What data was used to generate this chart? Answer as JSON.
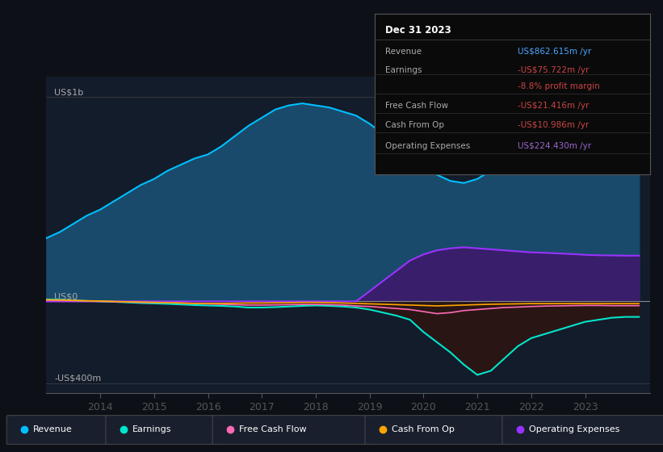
{
  "bg_color": "#0d1117",
  "plot_bg_color": "#131c2b",
  "title_box_date": "Dec 31 2023",
  "ylabel_top": "US$1b",
  "ylabel_zero": "US$0",
  "ylabel_bottom": "-US$400m",
  "years": [
    2013.0,
    2013.25,
    2013.5,
    2013.75,
    2014.0,
    2014.25,
    2014.5,
    2014.75,
    2015.0,
    2015.25,
    2015.5,
    2015.75,
    2016.0,
    2016.25,
    2016.5,
    2016.75,
    2017.0,
    2017.25,
    2017.5,
    2017.75,
    2018.0,
    2018.25,
    2018.5,
    2018.75,
    2019.0,
    2019.25,
    2019.5,
    2019.75,
    2020.0,
    2020.25,
    2020.5,
    2020.75,
    2021.0,
    2021.25,
    2021.5,
    2021.75,
    2022.0,
    2022.25,
    2022.5,
    2022.75,
    2023.0,
    2023.25,
    2023.5,
    2023.75,
    2024.0
  ],
  "revenue": [
    310,
    340,
    380,
    420,
    450,
    490,
    530,
    570,
    600,
    640,
    670,
    700,
    720,
    760,
    810,
    860,
    900,
    940,
    960,
    970,
    960,
    950,
    930,
    910,
    870,
    820,
    780,
    750,
    680,
    620,
    590,
    580,
    600,
    640,
    680,
    710,
    720,
    740,
    760,
    780,
    800,
    820,
    845,
    863,
    863
  ],
  "earnings": [
    10,
    8,
    5,
    2,
    0,
    -2,
    -5,
    -8,
    -10,
    -12,
    -15,
    -18,
    -20,
    -22,
    -25,
    -30,
    -30,
    -28,
    -25,
    -22,
    -20,
    -22,
    -25,
    -30,
    -40,
    -55,
    -70,
    -90,
    -150,
    -200,
    -250,
    -310,
    -360,
    -340,
    -280,
    -220,
    -180,
    -160,
    -140,
    -120,
    -100,
    -90,
    -80,
    -76,
    -76
  ],
  "free_cash_flow": [
    5,
    4,
    3,
    2,
    0,
    -2,
    -3,
    -5,
    -5,
    -6,
    -8,
    -10,
    -12,
    -14,
    -16,
    -18,
    -18,
    -17,
    -16,
    -15,
    -15,
    -16,
    -18,
    -22,
    -25,
    -30,
    -35,
    -40,
    -50,
    -60,
    -55,
    -45,
    -40,
    -35,
    -30,
    -28,
    -25,
    -23,
    -22,
    -21,
    -20,
    -20,
    -21,
    -21,
    -21
  ],
  "cash_from_op": [
    8,
    7,
    5,
    3,
    2,
    0,
    -2,
    -3,
    -5,
    -6,
    -8,
    -10,
    -10,
    -10,
    -9,
    -8,
    -8,
    -7,
    -6,
    -5,
    -5,
    -6,
    -8,
    -10,
    -12,
    -14,
    -16,
    -18,
    -20,
    -22,
    -20,
    -18,
    -16,
    -14,
    -13,
    -12,
    -11,
    -11,
    -11,
    -11,
    -11,
    -11,
    -11,
    -11,
    -11
  ],
  "op_expenses": [
    0,
    0,
    0,
    0,
    0,
    0,
    0,
    0,
    0,
    0,
    0,
    0,
    0,
    0,
    0,
    0,
    0,
    0,
    0,
    0,
    0,
    0,
    0,
    0,
    50,
    100,
    150,
    200,
    230,
    250,
    260,
    265,
    260,
    255,
    250,
    245,
    240,
    238,
    235,
    232,
    228,
    226,
    225,
    224,
    224
  ],
  "revenue_color": "#00bfff",
  "revenue_fill": "#1a4a6b",
  "earnings_color": "#00e5cc",
  "earnings_neg_fill": "#2a1515",
  "fcf_color": "#ff69b4",
  "cop_color": "#ffa500",
  "op_color": "#9933ff",
  "op_fill": "#3d1a6b",
  "x_ticks": [
    2014,
    2015,
    2016,
    2017,
    2018,
    2019,
    2020,
    2021,
    2022,
    2023
  ],
  "ylim": [
    -450,
    1100
  ],
  "xlim": [
    2013.0,
    2024.2
  ],
  "box_rows": [
    {
      "label": "Revenue",
      "value": "US$862.615m /yr",
      "value_color": "#4da6ff"
    },
    {
      "label": "Earnings",
      "value": "-US$75.722m /yr",
      "value_color": "#cc4444"
    },
    {
      "label": "",
      "value": "-8.8% profit margin",
      "value_color": "#cc4444"
    },
    {
      "label": "Free Cash Flow",
      "value": "-US$21.416m /yr",
      "value_color": "#cc4444"
    },
    {
      "label": "Cash From Op",
      "value": "-US$10.986m /yr",
      "value_color": "#cc4444"
    },
    {
      "label": "Operating Expenses",
      "value": "US$224.430m /yr",
      "value_color": "#9966cc"
    }
  ],
  "legend_items": [
    {
      "label": "Revenue",
      "color": "#00bfff"
    },
    {
      "label": "Earnings",
      "color": "#00e5cc"
    },
    {
      "label": "Free Cash Flow",
      "color": "#ff69b4"
    },
    {
      "label": "Cash From Op",
      "color": "#ffa500"
    },
    {
      "label": "Operating Expenses",
      "color": "#9933ff"
    }
  ]
}
